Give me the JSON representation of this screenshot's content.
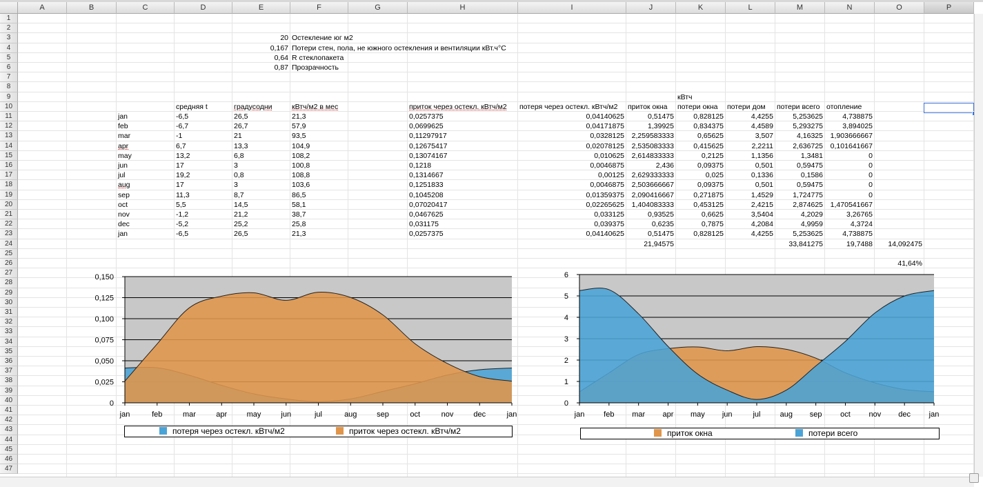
{
  "columns": [
    "A",
    "B",
    "C",
    "D",
    "E",
    "F",
    "G",
    "H",
    "I",
    "J",
    "K",
    "L",
    "M",
    "N",
    "O",
    "P"
  ],
  "selected_column": "P",
  "rows": [
    "1",
    "2",
    "3",
    "4",
    "5",
    "6",
    "7",
    "8",
    "9",
    "10",
    "11",
    "12",
    "13",
    "14",
    "15",
    "16",
    "17",
    "18",
    "19",
    "20",
    "21",
    "22",
    "23",
    "24",
    "25",
    "26",
    "27",
    "28",
    "29",
    "30",
    "31",
    "32",
    "33",
    "34",
    "35",
    "36",
    "37",
    "38",
    "39",
    "40",
    "41",
    "42",
    "43",
    "44",
    "45",
    "46",
    "47"
  ],
  "params": [
    {
      "value": "20",
      "label": "Остекление юг м2"
    },
    {
      "value": "0,167",
      "label": "Потери стен, пола, не южного остекления и вентиляции кВт.ч°С"
    },
    {
      "value": "0,64",
      "label": "R стеклопакета"
    },
    {
      "value": "0,87",
      "label": "Прозрачность"
    }
  ],
  "unit_label": "кВтч",
  "headers": {
    "D": "средняя t",
    "E": "градусодни",
    "F": "кВтч/м2 в мес",
    "H": "приток через остекл. кВтч/м2",
    "I": "потеря через остекл. кВтч/м2",
    "J": "приток окна",
    "K": "потери окна",
    "L": "потери дом",
    "M": "потери всего",
    "N": "отопление"
  },
  "table": [
    {
      "C": "jan",
      "D": "-6,5",
      "E": "26,5",
      "F": "21,3",
      "H": "0,0257375",
      "I": "0,04140625",
      "J": "0,51475",
      "K": "0,828125",
      "L": "4,4255",
      "M": "5,253625",
      "N": "4,738875"
    },
    {
      "C": "feb",
      "D": "-6,7",
      "E": "26,7",
      "F": "57,9",
      "H": "0,0699625",
      "I": "0,04171875",
      "J": "1,39925",
      "K": "0,834375",
      "L": "4,4589",
      "M": "5,293275",
      "N": "3,894025"
    },
    {
      "C": "mar",
      "D": "-1",
      "E": "21",
      "F": "93,5",
      "H": "0,11297917",
      "I": "0,0328125",
      "J": "2,259583333",
      "K": "0,65625",
      "L": "3,507",
      "M": "4,16325",
      "N": "1,903666667"
    },
    {
      "C": "apr",
      "D": "6,7",
      "E": "13,3",
      "F": "104,9",
      "H": "0,12675417",
      "I": "0,02078125",
      "J": "2,535083333",
      "K": "0,415625",
      "L": "2,2211",
      "M": "2,636725",
      "N": "0,101641667"
    },
    {
      "C": "may",
      "D": "13,2",
      "E": "6,8",
      "F": "108,2",
      "H": "0,13074167",
      "I": "0,010625",
      "J": "2,614833333",
      "K": "0,2125",
      "L": "1,1356",
      "M": "1,3481",
      "N": "0"
    },
    {
      "C": "jun",
      "D": "17",
      "E": "3",
      "F": "100,8",
      "H": "0,1218",
      "I": "0,0046875",
      "J": "2,436",
      "K": "0,09375",
      "L": "0,501",
      "M": "0,59475",
      "N": "0"
    },
    {
      "C": "jul",
      "D": "19,2",
      "E": "0,8",
      "F": "108,8",
      "H": "0,1314667",
      "I": "0,00125",
      "J": "2,629333333",
      "K": "0,025",
      "L": "0,1336",
      "M": "0,1586",
      "N": "0"
    },
    {
      "C": "aug",
      "D": "17",
      "E": "3",
      "F": "103,6",
      "H": "0,1251833",
      "I": "0,0046875",
      "J": "2,503666667",
      "K": "0,09375",
      "L": "0,501",
      "M": "0,59475",
      "N": "0"
    },
    {
      "C": "sep",
      "D": "11,3",
      "E": "8,7",
      "F": "86,5",
      "H": "0,1045208",
      "I": "0,01359375",
      "J": "2,090416667",
      "K": "0,271875",
      "L": "1,4529",
      "M": "1,724775",
      "N": "0"
    },
    {
      "C": "oct",
      "D": "5,5",
      "E": "14,5",
      "F": "58,1",
      "H": "0,07020417",
      "I": "0,02265625",
      "J": "1,404083333",
      "K": "0,453125",
      "L": "2,4215",
      "M": "2,874625",
      "N": "1,470541667"
    },
    {
      "C": "nov",
      "D": "-1,2",
      "E": "21,2",
      "F": "38,7",
      "H": "0,0467625",
      "I": "0,033125",
      "J": "0,93525",
      "K": "0,6625",
      "L": "3,5404",
      "M": "4,2029",
      "N": "3,26765"
    },
    {
      "C": "dec",
      "D": "-5,2",
      "E": "25,2",
      "F": "25,8",
      "H": "0,031175",
      "I": "0,039375",
      "J": "0,6235",
      "K": "0,7875",
      "L": "4,2084",
      "M": "4,9959",
      "N": "4,3724"
    },
    {
      "C": "jan",
      "D": "-6,5",
      "E": "26,5",
      "F": "21,3",
      "H": "0,0257375",
      "I": "0,04140625",
      "J": "0,51475",
      "K": "0,828125",
      "L": "4,4255",
      "M": "5,253625",
      "N": "4,738875"
    }
  ],
  "totals": {
    "J": "21,94575",
    "M": "33,841275",
    "N": "19,7488",
    "O": "14,092475"
  },
  "percent": "41,64%",
  "chart_data": [
    {
      "type": "area",
      "categories": [
        "jan",
        "feb",
        "mar",
        "apr",
        "may",
        "jun",
        "jul",
        "aug",
        "sep",
        "oct",
        "nov",
        "dec",
        "jan"
      ],
      "ylim": [
        0,
        0.15
      ],
      "yticks": [
        "0",
        "0,025",
        "0,050",
        "0,075",
        "0,100",
        "0,125",
        "0,150"
      ],
      "grid": true,
      "legend": "bottom",
      "series": [
        {
          "name": "потеря через остекл. кВтч/м2",
          "color": "#4aa3d6",
          "values": [
            0.04140625,
            0.04171875,
            0.0328125,
            0.02078125,
            0.010625,
            0.0046875,
            0.00125,
            0.0046875,
            0.01359375,
            0.02265625,
            0.033125,
            0.039375,
            0.04140625
          ]
        },
        {
          "name": "приток через остекл. кВтч/м2",
          "color": "#e0954a",
          "values": [
            0.0257375,
            0.0699625,
            0.11297917,
            0.12675417,
            0.13074167,
            0.1218,
            0.1314667,
            0.1251833,
            0.1045208,
            0.07020417,
            0.0467625,
            0.031175,
            0.0257375
          ]
        }
      ]
    },
    {
      "type": "area",
      "categories": [
        "jan",
        "feb",
        "mar",
        "apr",
        "may",
        "jun",
        "jul",
        "aug",
        "sep",
        "oct",
        "nov",
        "dec",
        "jan"
      ],
      "ylim": [
        0,
        6
      ],
      "yticks": [
        "0",
        "1",
        "2",
        "3",
        "4",
        "5",
        "6"
      ],
      "grid": true,
      "legend": "bottom",
      "series": [
        {
          "name": "приток окна",
          "color": "#e0954a",
          "values": [
            0.51475,
            1.39925,
            2.259583333,
            2.535083333,
            2.614833333,
            2.436,
            2.629333333,
            2.503666667,
            2.090416667,
            1.404083333,
            0.93525,
            0.6235,
            0.51475
          ]
        },
        {
          "name": "потери всего",
          "color": "#4aa3d6",
          "values": [
            5.253625,
            5.293275,
            4.16325,
            2.636725,
            1.3481,
            0.59475,
            0.1586,
            0.59475,
            1.724775,
            2.874625,
            4.2029,
            4.9959,
            5.253625
          ]
        }
      ]
    }
  ]
}
